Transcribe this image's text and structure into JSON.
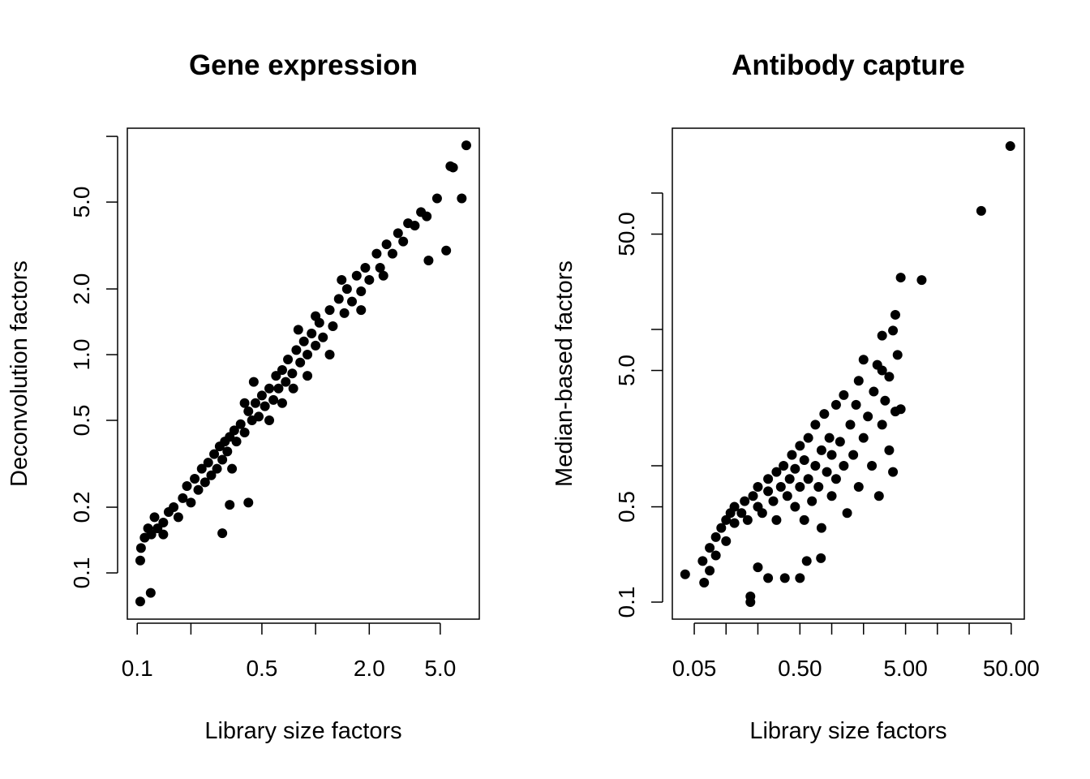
{
  "chart_data": [
    {
      "type": "scatter",
      "title": "Gene expression",
      "xlabel": "Library size factors",
      "ylabel": "Deconvolution factors",
      "xlog": true,
      "ylog": true,
      "color": "#000000",
      "xlim": [
        0.088,
        8.28
      ],
      "ylim": [
        0.0614,
        10.9
      ],
      "xticks": [
        0.1,
        0.5,
        {
          "value": 2,
          "label": "2.0"
        },
        {
          "value": 5,
          "label": "5.0"
        }
      ],
      "x_unlabeled_ticks": [
        0.2,
        1
      ],
      "yticks": [
        0.1,
        0.2,
        0.5,
        {
          "value": 1,
          "label": "1.0"
        },
        {
          "value": 2,
          "label": "2.0"
        },
        {
          "value": 5,
          "label": "5.0"
        }
      ],
      "y_unlabeled_ticks": [
        10
      ],
      "x": [
        0.104,
        0.119,
        0.104,
        0.105,
        0.11,
        0.115,
        0.12,
        0.125,
        0.13,
        0.14,
        0.14,
        0.15,
        0.16,
        0.17,
        0.18,
        0.19,
        0.2,
        0.21,
        0.22,
        0.23,
        0.24,
        0.25,
        0.26,
        0.27,
        0.28,
        0.29,
        0.3,
        0.3,
        0.31,
        0.32,
        0.33,
        0.33,
        0.34,
        0.35,
        0.36,
        0.38,
        0.4,
        0.42,
        0.42,
        0.44,
        0.46,
        0.48,
        0.5,
        0.52,
        0.55,
        0.58,
        0.6,
        0.62,
        0.65,
        0.68,
        0.7,
        0.74,
        0.78,
        0.82,
        0.86,
        0.9,
        0.95,
        1.0,
        1.05,
        1.1,
        1.2,
        1.25,
        1.35,
        1.45,
        1.5,
        1.6,
        1.7,
        1.8,
        1.9,
        2.0,
        2.2,
        2.3,
        2.5,
        2.7,
        2.9,
        3.1,
        3.3,
        3.6,
        3.9,
        4.2,
        4.3,
        4.8,
        5.4,
        5.7,
        5.9,
        6.6,
        7.0,
        0.45,
        0.55,
        0.8,
        0.75,
        1.2,
        1.4,
        2.4,
        0.4,
        0.65,
        1.0,
        1.8,
        0.9
      ],
      "y": [
        0.074,
        0.081,
        0.114,
        0.13,
        0.145,
        0.16,
        0.15,
        0.18,
        0.16,
        0.15,
        0.17,
        0.19,
        0.2,
        0.18,
        0.22,
        0.25,
        0.21,
        0.27,
        0.24,
        0.3,
        0.26,
        0.32,
        0.28,
        0.35,
        0.3,
        0.38,
        0.33,
        0.152,
        0.4,
        0.36,
        0.205,
        0.42,
        0.3,
        0.45,
        0.4,
        0.48,
        0.44,
        0.21,
        0.55,
        0.5,
        0.6,
        0.52,
        0.65,
        0.58,
        0.7,
        0.62,
        0.8,
        0.7,
        0.85,
        0.75,
        0.95,
        0.82,
        1.05,
        0.92,
        1.15,
        1.0,
        1.25,
        1.1,
        1.4,
        1.2,
        1.6,
        1.35,
        1.8,
        1.55,
        2.0,
        1.75,
        2.3,
        1.95,
        2.5,
        2.2,
        2.9,
        2.5,
        3.2,
        2.9,
        3.6,
        3.3,
        4.0,
        3.9,
        4.5,
        4.3,
        2.7,
        5.2,
        3.0,
        7.3,
        7.2,
        5.2,
        9.1,
        0.75,
        0.5,
        1.3,
        0.7,
        1.0,
        2.2,
        2.3,
        0.6,
        0.6,
        1.5,
        1.6,
        0.8
      ]
    },
    {
      "type": "scatter",
      "title": "Antibody capture",
      "xlabel": "Library size factors",
      "ylabel": "Median-based factors",
      "xlog": true,
      "ylog": true,
      "color": "#000000",
      "xlim": [
        0.031,
        66.5
      ],
      "ylim": [
        0.075,
        299
      ],
      "xticks": [
        0.05,
        {
          "value": 0.5,
          "label": "0.50"
        },
        {
          "value": 5,
          "label": "5.00"
        },
        {
          "value": 50,
          "label": "50.00"
        }
      ],
      "x_unlabeled_ticks": [
        0.1,
        0.2,
        1,
        2,
        10,
        20
      ],
      "yticks": [
        0.1,
        0.5,
        {
          "value": 5,
          "label": "5.0"
        },
        {
          "value": 50,
          "label": "50.0"
        }
      ],
      "y_unlabeled_ticks": [
        1,
        10,
        100
      ],
      "x": [
        0.06,
        0.07,
        0.07,
        0.08,
        0.08,
        0.09,
        0.1,
        0.1,
        0.11,
        0.12,
        0.12,
        0.14,
        0.15,
        0.16,
        0.18,
        0.2,
        0.2,
        0.22,
        0.25,
        0.25,
        0.28,
        0.3,
        0.3,
        0.33,
        0.35,
        0.38,
        0.4,
        0.42,
        0.45,
        0.45,
        0.5,
        0.5,
        0.55,
        0.55,
        0.6,
        0.6,
        0.65,
        0.7,
        0.7,
        0.75,
        0.8,
        0.8,
        0.85,
        0.9,
        0.95,
        1.0,
        1.0,
        1.1,
        1.1,
        1.2,
        1.3,
        1.3,
        1.4,
        1.5,
        1.6,
        1.7,
        1.8,
        1.8,
        2.0,
        2.0,
        2.2,
        2.4,
        2.5,
        2.7,
        2.8,
        3.0,
        3.2,
        3.5,
        3.5,
        3.8,
        4.0,
        4.5,
        4.2,
        3.0,
        3.8,
        3.0,
        0.041,
        0.062,
        0.17,
        0.17,
        0.2,
        0.36,
        0.5,
        0.79,
        0.58,
        0.25,
        4.0,
        4.5,
        7.1,
        26,
        49
      ],
      "y": [
        0.2,
        0.25,
        0.17,
        0.3,
        0.22,
        0.35,
        0.4,
        0.28,
        0.45,
        0.38,
        0.5,
        0.45,
        0.55,
        0.4,
        0.6,
        0.5,
        0.7,
        0.45,
        0.65,
        0.8,
        0.55,
        0.9,
        0.4,
        0.7,
        1.0,
        0.6,
        0.8,
        1.2,
        0.5,
        0.95,
        0.7,
        1.4,
        0.4,
        1.1,
        0.8,
        1.6,
        0.55,
        1.0,
        2.0,
        0.7,
        1.3,
        0.35,
        2.4,
        0.9,
        1.6,
        0.6,
        1.2,
        2.8,
        0.8,
        1.5,
        1.0,
        3.3,
        0.45,
        2.0,
        1.2,
        2.8,
        0.7,
        4.2,
        1.6,
        6.0,
        2.3,
        1.0,
        3.5,
        5.5,
        0.6,
        2.0,
        3.0,
        1.3,
        4.5,
        0.9,
        2.5,
        2.6,
        6.5,
        9.0,
        9.8,
        5.0,
        0.16,
        0.139,
        0.11,
        0.1,
        0.18,
        0.15,
        0.15,
        0.21,
        0.2,
        0.15,
        12.8,
        24,
        23,
        74,
        221
      ]
    }
  ]
}
